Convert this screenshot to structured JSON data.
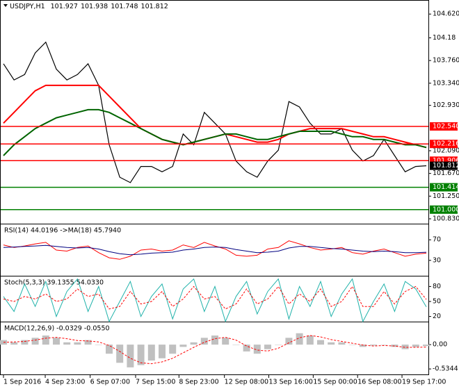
{
  "chart_data": [
    {
      "type": "line",
      "title": "USDJPY,H1",
      "ohlc": [
        101.927,
        101.938,
        101.748,
        101.812
      ],
      "ylim": [
        100.74,
        104.88
      ],
      "xlim": [
        0,
        40
      ],
      "yticks": [
        {
          "value": 104.62,
          "label": "104.620"
        },
        104.18,
        {
          "value": 103.76,
          "label": "103.760"
        },
        {
          "value": 103.34,
          "label": "103.340"
        },
        {
          "value": 102.93,
          "label": "102.930"
        },
        {
          "value": 102.09,
          "label": "102.090"
        },
        {
          "value": 101.67,
          "label": "101.670"
        },
        {
          "value": 101.25,
          "label": "101.250"
        },
        {
          "value": 100.83,
          "label": "100.830"
        }
      ],
      "hlines": [
        {
          "value": 102.54,
          "label": "102.540",
          "color": "#ff0000"
        },
        {
          "value": 102.216,
          "color": "#ff0000"
        },
        {
          "value": 101.906,
          "color": "#ff0000"
        },
        {
          "value": 101.414,
          "color": "#008000"
        },
        {
          "value": 101.0,
          "label": "101.000",
          "color": "#008000"
        }
      ],
      "series": [
        {
          "color": "#000000",
          "style": "solid",
          "values": [
            103.7,
            103.4,
            103.5,
            103.9,
            104.1,
            103.6,
            103.4,
            103.5,
            103.7,
            103.3,
            102.2,
            101.6,
            101.5,
            101.8,
            101.8,
            101.7,
            101.8,
            102.4,
            102.2,
            102.8,
            102.6,
            102.4,
            101.9,
            101.7,
            101.6,
            101.9,
            102.1,
            103.0,
            102.9,
            102.6,
            102.4,
            102.4,
            102.5,
            102.1,
            101.9,
            102.0,
            102.3,
            102.0,
            101.7,
            101.8,
            101.812
          ]
        },
        {
          "color": "#ff0000",
          "style": "solid",
          "values": [
            102.6,
            102.8,
            103.0,
            103.2,
            103.3,
            103.3,
            103.3,
            103.3,
            103.3,
            103.3,
            103.1,
            102.9,
            102.7,
            102.5,
            102.4,
            102.3,
            102.25,
            102.2,
            102.25,
            102.3,
            102.35,
            102.4,
            102.35,
            102.3,
            102.25,
            102.25,
            102.3,
            102.4,
            102.45,
            102.5,
            102.5,
            102.5,
            102.5,
            102.45,
            102.4,
            102.35,
            102.35,
            102.3,
            102.25,
            102.2,
            102.15
          ]
        },
        {
          "color": "#006400",
          "style": "solid",
          "values": [
            102.0,
            102.2,
            102.35,
            102.5,
            102.6,
            102.7,
            102.75,
            102.8,
            102.85,
            102.85,
            102.8,
            102.7,
            102.6,
            102.5,
            102.4,
            102.3,
            102.25,
            102.2,
            102.25,
            102.3,
            102.35,
            102.4,
            102.4,
            102.35,
            102.3,
            102.3,
            102.35,
            102.4,
            102.45,
            102.45,
            102.45,
            102.45,
            102.4,
            102.35,
            102.35,
            102.3,
            102.3,
            102.25,
            102.2,
            102.2,
            102.15
          ]
        }
      ]
    },
    {
      "type": "line",
      "title": "RSI(14) 44.0196 ->MA(18) 45.7940",
      "ylim": [
        0,
        100
      ],
      "xlim": [
        0,
        40
      ],
      "yticks": [
        70,
        30
      ],
      "series": [
        {
          "color": "#ff0000",
          "style": "solid",
          "values": [
            60,
            55,
            58,
            62,
            65,
            50,
            48,
            55,
            58,
            45,
            35,
            32,
            38,
            50,
            52,
            48,
            50,
            60,
            55,
            65,
            58,
            52,
            40,
            38,
            40,
            52,
            55,
            68,
            62,
            55,
            50,
            52,
            55,
            45,
            42,
            48,
            52,
            45,
            38,
            42,
            44.0196
          ]
        },
        {
          "color": "#000080",
          "style": "solid",
          "values": [
            55,
            56,
            57,
            58,
            59,
            57,
            55,
            54,
            55,
            52,
            47,
            43,
            41,
            42,
            44,
            45,
            46,
            50,
            52,
            55,
            56,
            55,
            51,
            48,
            45,
            46,
            48,
            54,
            57,
            57,
            55,
            53,
            52,
            50,
            48,
            47,
            48,
            47,
            45,
            45,
            45.794
          ]
        }
      ]
    },
    {
      "type": "line",
      "title": "Stoch(5,3,3) 39.1355 54.0330",
      "ylim": [
        0,
        100
      ],
      "xlim": [
        0,
        40
      ],
      "yticks": [
        80,
        50,
        20
      ],
      "series": [
        {
          "color": "#20b2aa",
          "style": "solid",
          "values": [
            60,
            30,
            85,
            40,
            90,
            20,
            70,
            95,
            30,
            80,
            10,
            50,
            90,
            20,
            60,
            85,
            15,
            75,
            95,
            30,
            80,
            10,
            60,
            90,
            25,
            70,
            95,
            15,
            80,
            40,
            90,
            20,
            65,
            95,
            10,
            50,
            85,
            30,
            90,
            75,
            39.1355
          ]
        },
        {
          "color": "#ff0000",
          "style": "dashed",
          "values": [
            55,
            50,
            60,
            55,
            65,
            50,
            55,
            75,
            60,
            65,
            35,
            40,
            70,
            45,
            50,
            70,
            40,
            55,
            80,
            55,
            60,
            35,
            45,
            75,
            45,
            55,
            80,
            45,
            65,
            50,
            75,
            40,
            50,
            80,
            40,
            40,
            70,
            45,
            70,
            80,
            54.033
          ]
        }
      ]
    },
    {
      "type": "line",
      "title": "MACD(12,26,9) -0.0329 -0.0550",
      "ylim": [
        -0.67,
        0.49
      ],
      "xlim": [
        0,
        40
      ],
      "yticks": [
        {
          "value": 0,
          "label": "0.00"
        },
        -0.5344
      ],
      "xticks": [
        {
          "value": 0,
          "label": "1 Sep 2016"
        },
        {
          "value": 3.95,
          "label": "4 Sep 23:00"
        },
        {
          "value": 8.2,
          "label": "6 Sep 07:00"
        },
        {
          "value": 12.5,
          "label": "7 Sep 15:00"
        },
        {
          "value": 16.6,
          "label": "8 Sep 23:00"
        },
        {
          "value": 20.9,
          "label": "12 Sep 08:00"
        },
        {
          "value": 25.1,
          "label": "13 Sep 16:00"
        },
        {
          "value": 29.3,
          "label": "15 Sep 00:00"
        },
        {
          "value": 33.5,
          "label": "16 Sep 08:00"
        },
        {
          "value": 37.7,
          "label": "19 Sep 17:00"
        }
      ],
      "series": [
        {
          "color": "#c0c0c0",
          "style": "bar",
          "values": [
            0.1,
            0.05,
            0.1,
            0.15,
            0.2,
            0.15,
            0.05,
            0.05,
            0.1,
            0.0,
            -0.2,
            -0.4,
            -0.5,
            -0.45,
            -0.35,
            -0.3,
            -0.2,
            -0.05,
            0.05,
            0.15,
            0.2,
            0.15,
            0.0,
            -0.15,
            -0.2,
            -0.1,
            0.0,
            0.15,
            0.25,
            0.2,
            0.1,
            0.05,
            0.05,
            0.0,
            -0.05,
            -0.02,
            0.0,
            -0.05,
            -0.1,
            -0.05,
            -0.0329
          ]
        },
        {
          "color": "#ff0000",
          "style": "dashed",
          "values": [
            0.05,
            0.06,
            0.07,
            0.1,
            0.14,
            0.16,
            0.13,
            0.09,
            0.08,
            0.06,
            -0.02,
            -0.15,
            -0.3,
            -0.4,
            -0.42,
            -0.38,
            -0.3,
            -0.18,
            -0.06,
            0.05,
            0.13,
            0.16,
            0.1,
            -0.03,
            -0.12,
            -0.14,
            -0.08,
            0.04,
            0.15,
            0.2,
            0.17,
            0.11,
            0.07,
            0.03,
            -0.01,
            -0.03,
            -0.02,
            -0.03,
            -0.06,
            -0.06,
            -0.055
          ]
        }
      ]
    }
  ]
}
